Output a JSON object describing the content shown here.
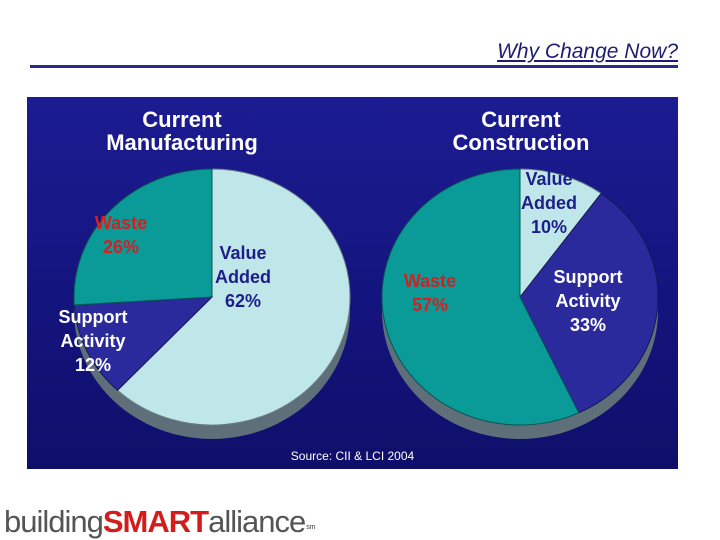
{
  "slide": {
    "title": "Why Change Now?",
    "source": "Source: CII & LCI 2004"
  },
  "logo": {
    "part1": "building",
    "part2": "SMART",
    "part3": "alliance",
    "mark": "sm"
  },
  "colors": {
    "panel_background": "#16168a",
    "value_added": "#bfe6e8",
    "waste": "#0a9a97",
    "support_activity": "#2a2a9c"
  },
  "chart_data": [
    {
      "type": "pie",
      "title": "Current Manufacturing",
      "title_lines": [
        "Current",
        "Manufacturing"
      ],
      "slices": [
        {
          "label": "Value Added",
          "value": 62,
          "label_lines": [
            "Value",
            "Added",
            "62%"
          ],
          "color": "#bfe6e8",
          "label_color": "#1e1e8a"
        },
        {
          "label": "Support Activity",
          "value": 12,
          "label_lines": [
            "Support",
            "Activity",
            "12%"
          ],
          "color": "#2a2a9c",
          "label_color": "#ffffff"
        },
        {
          "label": "Waste",
          "value": 26,
          "label_lines": [
            "Waste",
            "26%"
          ],
          "color": "#0a9a97",
          "label_color": "#d42020"
        }
      ]
    },
    {
      "type": "pie",
      "title": "Current Construction",
      "title_lines": [
        "Current",
        "Construction"
      ],
      "slices": [
        {
          "label": "Value Added",
          "value": 10,
          "label_lines": [
            "Value",
            "Added",
            "10%"
          ],
          "color": "#bfe6e8",
          "label_color": "#1e1e8a"
        },
        {
          "label": "Support Activity",
          "value": 33,
          "label_lines": [
            "Support",
            "Activity",
            "33%"
          ],
          "color": "#2a2a9c",
          "label_color": "#ffffff"
        },
        {
          "label": "Waste",
          "value": 57,
          "label_lines": [
            "Waste",
            "57%"
          ],
          "color": "#0a9a97",
          "label_color": "#d42020"
        }
      ]
    }
  ]
}
